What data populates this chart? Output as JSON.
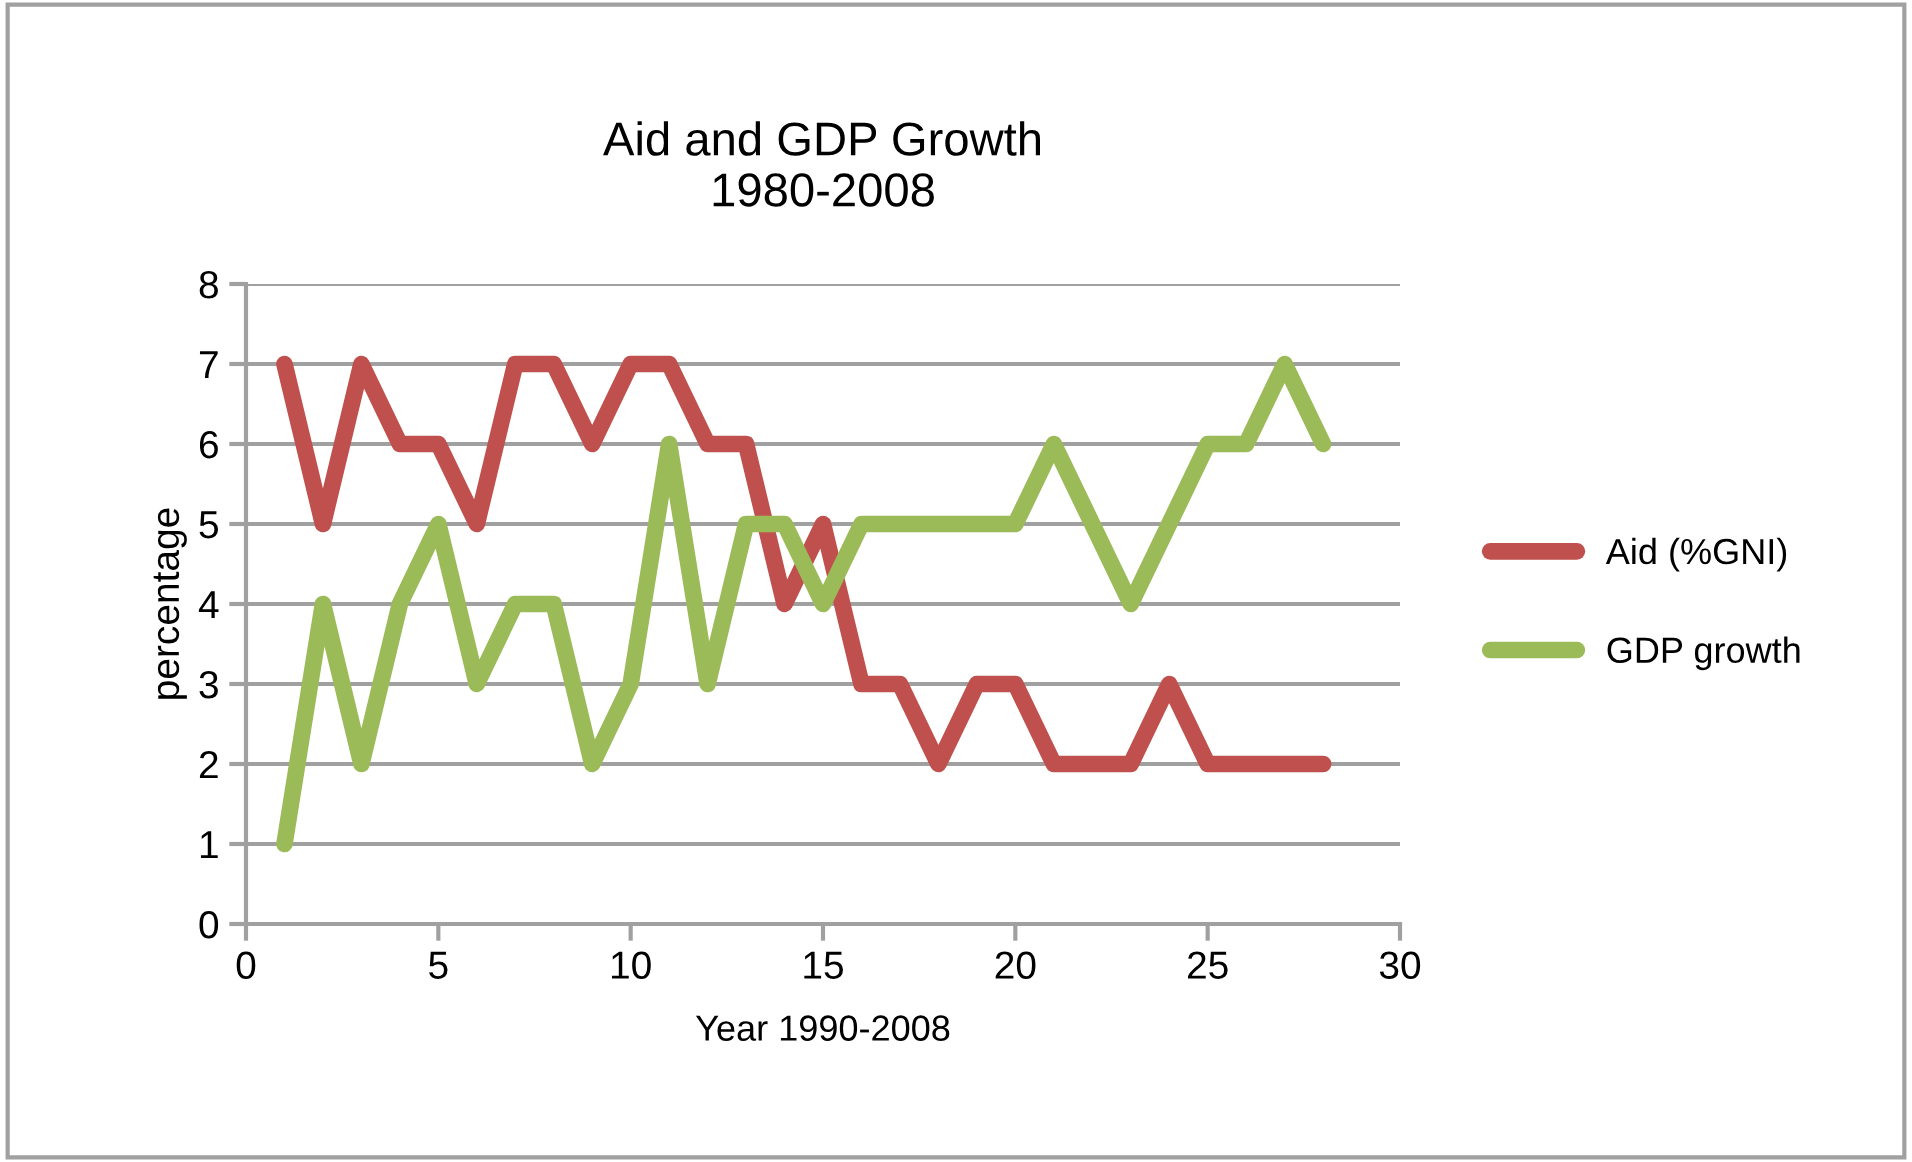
{
  "chart_data": {
    "type": "line",
    "title": "Aid and GDP Growth\n1980-2008",
    "xlabel": "Year 1990-2008",
    "ylabel": "percentage",
    "x": [
      1,
      2,
      3,
      4,
      5,
      6,
      7,
      8,
      9,
      10,
      11,
      12,
      13,
      14,
      15,
      16,
      17,
      18,
      19,
      20,
      21,
      22,
      23,
      24,
      25,
      26,
      27,
      28
    ],
    "series": [
      {
        "name": "Aid (%GNI)",
        "color": "#c0504d",
        "values": [
          7,
          5,
          7,
          6,
          6,
          5,
          7,
          7,
          6,
          7,
          7,
          6,
          6,
          4,
          5,
          3,
          3,
          2,
          3,
          3,
          2,
          2,
          2,
          3,
          2,
          2,
          2,
          2
        ]
      },
      {
        "name": "GDP growth",
        "color": "#9bbb59",
        "values": [
          1,
          4,
          2,
          4,
          5,
          3,
          4,
          4,
          2,
          3,
          6,
          3,
          5,
          5,
          4,
          5,
          5,
          5,
          5,
          5,
          6,
          5,
          4,
          5,
          6,
          6,
          7,
          6
        ]
      }
    ],
    "xlim": [
      0,
      30
    ],
    "xticks": [
      0,
      5,
      10,
      15,
      20,
      25,
      30
    ],
    "ylim": [
      0,
      8
    ],
    "yticks": [
      0,
      1,
      2,
      3,
      4,
      5,
      6,
      7,
      8
    ],
    "grid": "y",
    "legend": "right",
    "marker": "none",
    "line_style": "solid"
  }
}
